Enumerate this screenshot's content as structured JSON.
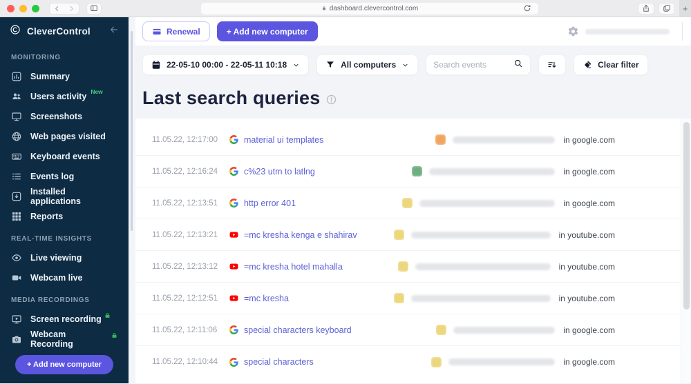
{
  "browser": {
    "url": "dashboard.clevercontrol.com",
    "new_tab": "+"
  },
  "sidebar": {
    "brand": "CleverControl",
    "add_button": "+ Add new computer",
    "sections": [
      {
        "label": "MONITORING",
        "items": [
          {
            "label": "Summary",
            "icon": "summary-icon"
          },
          {
            "label": "Users activity",
            "icon": "users-icon",
            "badge": "New"
          },
          {
            "label": "Screenshots",
            "icon": "screenshots-icon"
          },
          {
            "label": "Web pages visited",
            "icon": "globe-icon"
          },
          {
            "label": "Keyboard events",
            "icon": "keyboard-icon"
          },
          {
            "label": "Events log",
            "icon": "list-icon"
          },
          {
            "label": "Installed applications",
            "icon": "apps-icon"
          },
          {
            "label": "Reports",
            "icon": "grid-icon"
          }
        ]
      },
      {
        "label": "REAL-TIME INSIGHTS",
        "items": [
          {
            "label": "Live viewing",
            "icon": "eye-icon"
          },
          {
            "label": "Webcam live",
            "icon": "video-icon"
          }
        ]
      },
      {
        "label": "MEDIA RECORDINGS",
        "items": [
          {
            "label": "Screen recording",
            "icon": "screen-rec-icon",
            "lock": true
          },
          {
            "label": "Webcam Recording",
            "icon": "camera-icon",
            "lock": true
          }
        ]
      }
    ]
  },
  "header": {
    "renewal": "Renewal",
    "add_computer": "+ Add new computer"
  },
  "filters": {
    "date_range": "22-05-10 00:00 - 22-05-11 10:18",
    "computers": "All computers",
    "search_placeholder": "Search events",
    "clear": "Clear filter"
  },
  "page": {
    "title": "Last search queries"
  },
  "rows": [
    {
      "time": "11.05.22, 12:17:00",
      "source": "google",
      "query": "material ui templates",
      "avatar_color": "#f2a45e",
      "name_width": 148,
      "domain": "in google.com"
    },
    {
      "time": "11.05.22, 12:16:24",
      "source": "google",
      "query": "c%23 utm to latlng",
      "avatar_color": "#6fae80",
      "name_width": 182,
      "domain": "in google.com"
    },
    {
      "time": "11.05.22, 12:13:51",
      "source": "google",
      "query": "http error 401",
      "avatar_color": "#ecd77d",
      "name_width": 196,
      "domain": "in google.com"
    },
    {
      "time": "11.05.22, 12:13:21",
      "source": "youtube",
      "query": "=mc kresha kenga e shahirav",
      "avatar_color": "#ecd77d",
      "name_width": 202,
      "domain": "in youtube.com"
    },
    {
      "time": "11.05.22, 12:13:12",
      "source": "youtube",
      "query": "=mc kresha hotel mahalla",
      "avatar_color": "#ecd77d",
      "name_width": 196,
      "domain": "in youtube.com"
    },
    {
      "time": "11.05.22, 12:12:51",
      "source": "youtube",
      "query": "=mc kresha",
      "avatar_color": "#ecd77d",
      "name_width": 202,
      "domain": "in youtube.com"
    },
    {
      "time": "11.05.22, 12:11:06",
      "source": "google",
      "query": "special characters keyboard",
      "avatar_color": "#ecd77d",
      "name_width": 147,
      "domain": "in google.com"
    },
    {
      "time": "11.05.22, 12:10:44",
      "source": "google",
      "query": "special characters",
      "avatar_color": "#ecd77d",
      "name_width": 154,
      "domain": "in google.com"
    }
  ],
  "colors": {
    "accent": "#5b55e0",
    "sidebar_bg": "#0d2b43",
    "badge_green": "#45cd81",
    "link": "#5d61d6",
    "youtube_red": "#ff0000"
  }
}
